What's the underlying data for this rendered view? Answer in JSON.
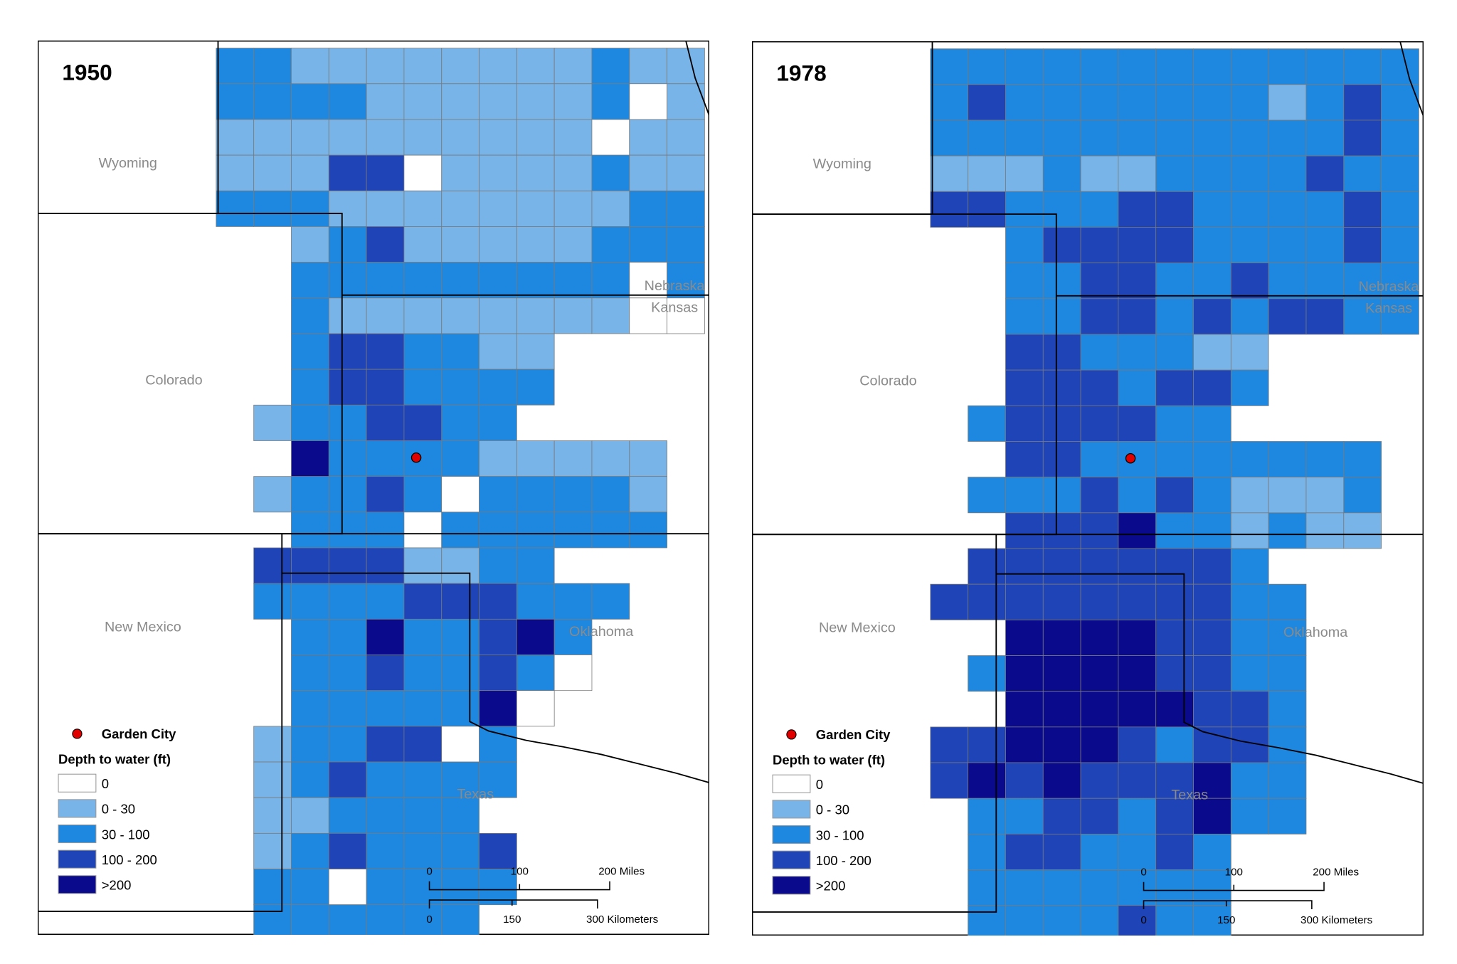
{
  "legend": {
    "city_label": "Garden City",
    "title": "Depth to water (ft)",
    "classes": [
      {
        "label": "0",
        "color": "#ffffff"
      },
      {
        "label": "0 - 30",
        "color": "#78b4e8"
      },
      {
        "label": "30 - 100",
        "color": "#1e88e0"
      },
      {
        "label": "100 - 200",
        "color": "#1e44b8"
      },
      {
        "label": ">200",
        "color": "#0a0a8c"
      }
    ],
    "city_color": "#e00000"
  },
  "states": {
    "wyoming": "Wyoming",
    "colorado": "Colorado",
    "nebraska": "Nebraska",
    "kansas": "Kansas",
    "new_mexico": "New Mexico",
    "oklahoma": "Oklahoma",
    "texas": "Texas"
  },
  "scale": {
    "miles": [
      "0",
      "100",
      "200 Miles"
    ],
    "km": [
      "0",
      "150",
      "300 Kilometers"
    ]
  },
  "panels": [
    {
      "year": "1950",
      "county_classes": [
        "2211111111211",
        "2222111111201",
        "1111111111011",
        "1113301111211",
        "2221111111122",
        "..12311111222",
        "..22222222202",
        "..21111111100",
        "..2332211....",
        "..2332222....",
        ".1223322.....",
        "..4222211111.",
        ".12232022221.",
        "..2220222222.",
        ".33331122....",
        ".2222333222..",
        "..22422342...",
        "..22322320...",
        "..2222240....",
        ".1223302.....",
        ".1232222.....",
        ".112222......",
        ".1232223.....",
        ".2202222.....",
        ".222222......"
      ]
    },
    {
      "year": "1978",
      "county_classes": [
        "2222222222222",
        "2322222221232",
        "2222222222232",
        "1112112222322",
        "3322233222232",
        "..23333222232",
        "..22332232222",
        "..22332323322",
        "..3322211....",
        "..3332332....",
        ".2333322.....",
        "..3322222222.",
        ".22232321112.",
        "..3334221211.",
        ".33333332....",
        "3333333322...",
        "..44443322...",
        ".244443322...",
        "..44444332...",
        "3344432332...",
        "3434333422...",
        ".223323422...",
        ".2332232.....",
        ".2222222.....",
        ".2222322....."
      ]
    }
  ]
}
